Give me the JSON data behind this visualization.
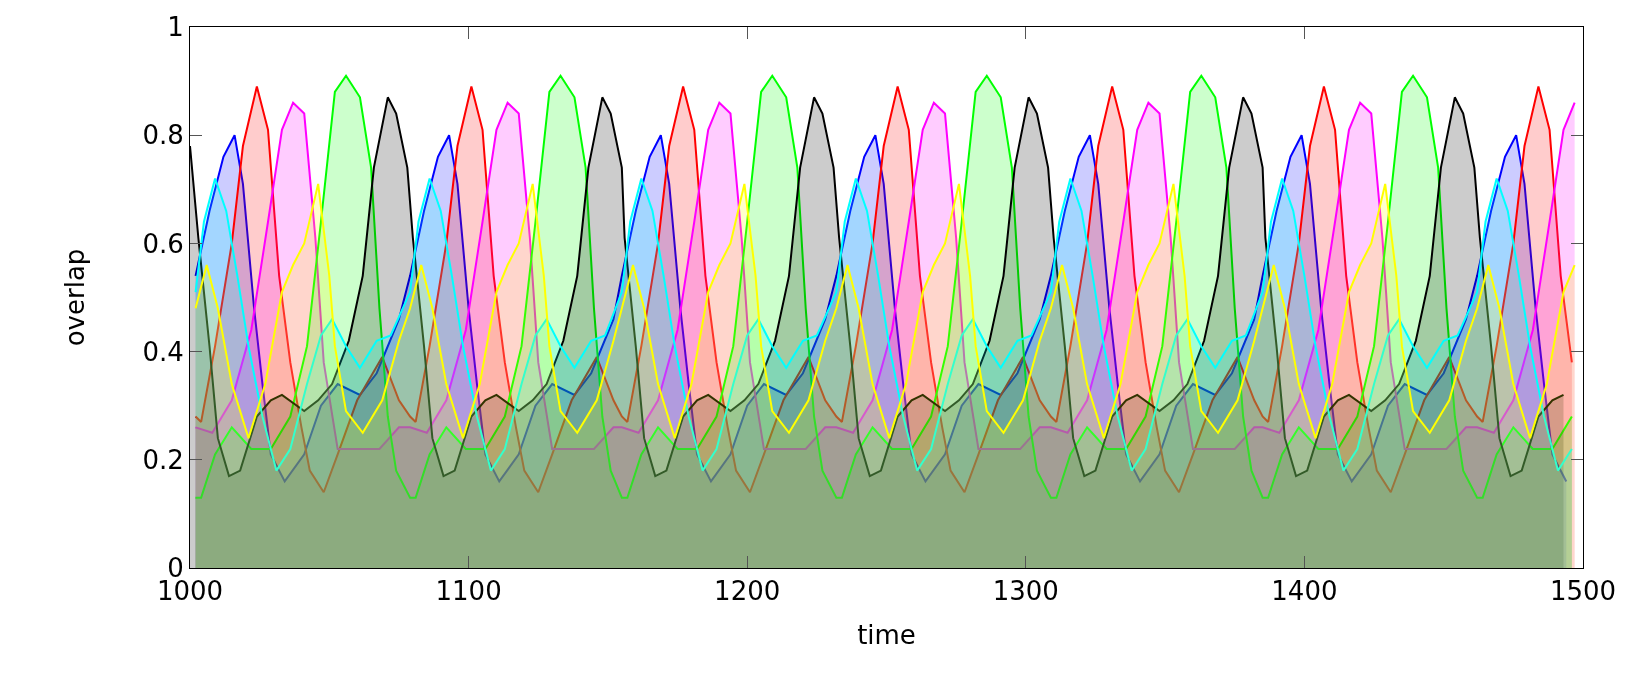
{
  "chart_data": {
    "type": "area",
    "xlabel": "time",
    "ylabel": "overlap",
    "xlim": [
      1000,
      1500
    ],
    "xticks": [
      1000,
      1100,
      1200,
      1300,
      1400,
      1500
    ],
    "ylim": [
      0,
      1
    ],
    "yticks": [
      0,
      0.2,
      0.4,
      0.6,
      0.8,
      1
    ],
    "marker": "none",
    "line_style": "solid",
    "series": [
      {
        "color": "#0000ff",
        "x": [
          1002,
          1007,
          1012,
          1016,
          1019,
          1023,
          1026,
          1029,
          1034,
          1041,
          1047,
          1053,
          1061,
          1067,
          1075,
          1079,
          1084,
          1089,
          1093,
          1096,
          1100,
          1103,
          1106,
          1111,
          1118,
          1124,
          1130,
          1138,
          1144,
          1152,
          1155,
          1160,
          1165,
          1169,
          1172,
          1176,
          1179,
          1182,
          1187,
          1194,
          1200,
          1206,
          1214,
          1220,
          1228,
          1232,
          1237,
          1242,
          1246,
          1249,
          1253,
          1256,
          1259,
          1264,
          1271,
          1277,
          1283,
          1291,
          1297,
          1305,
          1309,
          1314,
          1319,
          1323,
          1326,
          1330,
          1333,
          1336,
          1341,
          1348,
          1354,
          1360,
          1368,
          1374,
          1382,
          1385,
          1390,
          1395,
          1399,
          1402,
          1406,
          1409,
          1412,
          1417,
          1424,
          1430,
          1436,
          1444,
          1450,
          1458,
          1462,
          1467,
          1472,
          1476,
          1479,
          1483,
          1486,
          1489,
          1494
        ],
        "values": [
          0.54,
          0.66,
          0.76,
          0.8,
          0.71,
          0.48,
          0.34,
          0.21,
          0.16,
          0.21,
          0.3,
          0.34,
          0.32,
          0.36,
          0.46,
          0.54,
          0.66,
          0.76,
          0.8,
          0.71,
          0.48,
          0.34,
          0.21,
          0.16,
          0.21,
          0.3,
          0.34,
          0.32,
          0.36,
          0.46,
          0.54,
          0.66,
          0.76,
          0.8,
          0.71,
          0.48,
          0.34,
          0.21,
          0.16,
          0.21,
          0.3,
          0.34,
          0.32,
          0.36,
          0.46,
          0.54,
          0.66,
          0.76,
          0.8,
          0.71,
          0.48,
          0.34,
          0.21,
          0.16,
          0.21,
          0.3,
          0.34,
          0.32,
          0.36,
          0.46,
          0.54,
          0.66,
          0.76,
          0.8,
          0.71,
          0.48,
          0.34,
          0.21,
          0.16,
          0.21,
          0.3,
          0.34,
          0.32,
          0.36,
          0.46,
          0.54,
          0.66,
          0.76,
          0.8,
          0.71,
          0.48,
          0.34,
          0.21,
          0.16,
          0.21,
          0.3,
          0.34,
          0.32,
          0.36,
          0.46,
          0.54,
          0.66,
          0.76,
          0.8,
          0.71,
          0.48,
          0.34,
          0.21,
          0.16
        ]
      },
      {
        "color": "#ff0000",
        "x": [
          1002,
          1004,
          1009,
          1015,
          1019,
          1024,
          1028,
          1032,
          1036,
          1040,
          1043,
          1048,
          1053,
          1060,
          1069,
          1075,
          1079,
          1081,
          1086,
          1092,
          1096,
          1101,
          1105,
          1109,
          1113,
          1117,
          1120,
          1125,
          1130,
          1137,
          1146,
          1152,
          1155,
          1157,
          1162,
          1168,
          1172,
          1177,
          1181,
          1185,
          1189,
          1193,
          1196,
          1201,
          1206,
          1213,
          1222,
          1228,
          1232,
          1234,
          1239,
          1245,
          1249,
          1254,
          1258,
          1262,
          1266,
          1270,
          1273,
          1278,
          1283,
          1290,
          1299,
          1305,
          1309,
          1311,
          1316,
          1322,
          1326,
          1331,
          1335,
          1339,
          1343,
          1347,
          1350,
          1355,
          1360,
          1367,
          1376,
          1382,
          1385,
          1387,
          1392,
          1398,
          1402,
          1407,
          1411,
          1415,
          1419,
          1423,
          1426,
          1431,
          1436,
          1443,
          1452,
          1458,
          1462,
          1464,
          1469,
          1475,
          1479,
          1484,
          1488,
          1492,
          1496
        ],
        "values": [
          0.28,
          0.27,
          0.41,
          0.6,
          0.78,
          0.89,
          0.81,
          0.54,
          0.38,
          0.26,
          0.18,
          0.14,
          0.21,
          0.31,
          0.39,
          0.31,
          0.28,
          0.27,
          0.41,
          0.6,
          0.78,
          0.89,
          0.81,
          0.54,
          0.38,
          0.26,
          0.18,
          0.14,
          0.21,
          0.31,
          0.39,
          0.31,
          0.28,
          0.27,
          0.41,
          0.6,
          0.78,
          0.89,
          0.81,
          0.54,
          0.38,
          0.26,
          0.18,
          0.14,
          0.21,
          0.31,
          0.39,
          0.31,
          0.28,
          0.27,
          0.41,
          0.6,
          0.78,
          0.89,
          0.81,
          0.54,
          0.38,
          0.26,
          0.18,
          0.14,
          0.21,
          0.31,
          0.39,
          0.31,
          0.28,
          0.27,
          0.41,
          0.6,
          0.78,
          0.89,
          0.81,
          0.54,
          0.38,
          0.26,
          0.18,
          0.14,
          0.21,
          0.31,
          0.39,
          0.31,
          0.28,
          0.27,
          0.41,
          0.6,
          0.78,
          0.89,
          0.81,
          0.54,
          0.38,
          0.26,
          0.18,
          0.14,
          0.21,
          0.31,
          0.39,
          0.31,
          0.28,
          0.27,
          0.41,
          0.6,
          0.78,
          0.89,
          0.81,
          0.54,
          0.38
        ]
      },
      {
        "color": "#ff00ff",
        "x": [
          1002,
          1008,
          1015,
          1022,
          1028,
          1033,
          1037,
          1041,
          1045,
          1048,
          1053,
          1060,
          1068,
          1075,
          1079,
          1085,
          1092,
          1099,
          1105,
          1110,
          1114,
          1118,
          1122,
          1125,
          1130,
          1137,
          1145,
          1152,
          1155,
          1161,
          1168,
          1175,
          1181,
          1186,
          1190,
          1194,
          1198,
          1201,
          1206,
          1213,
          1221,
          1228,
          1232,
          1238,
          1245,
          1252,
          1258,
          1263,
          1267,
          1271,
          1275,
          1278,
          1283,
          1290,
          1298,
          1305,
          1309,
          1315,
          1322,
          1329,
          1335,
          1340,
          1344,
          1348,
          1352,
          1355,
          1360,
          1367,
          1375,
          1382,
          1385,
          1391,
          1398,
          1405,
          1411,
          1416,
          1420,
          1424,
          1428,
          1431,
          1436,
          1443,
          1451,
          1458,
          1462,
          1468,
          1475,
          1482,
          1488,
          1493,
          1497
        ],
        "values": [
          0.26,
          0.25,
          0.31,
          0.44,
          0.64,
          0.81,
          0.86,
          0.84,
          0.61,
          0.38,
          0.22,
          0.22,
          0.22,
          0.26,
          0.26,
          0.25,
          0.31,
          0.44,
          0.64,
          0.81,
          0.86,
          0.84,
          0.61,
          0.38,
          0.22,
          0.22,
          0.22,
          0.26,
          0.26,
          0.25,
          0.31,
          0.44,
          0.64,
          0.81,
          0.86,
          0.84,
          0.61,
          0.38,
          0.22,
          0.22,
          0.22,
          0.26,
          0.26,
          0.25,
          0.31,
          0.44,
          0.64,
          0.81,
          0.86,
          0.84,
          0.61,
          0.38,
          0.22,
          0.22,
          0.22,
          0.26,
          0.26,
          0.25,
          0.31,
          0.44,
          0.64,
          0.81,
          0.86,
          0.84,
          0.61,
          0.38,
          0.22,
          0.22,
          0.22,
          0.26,
          0.26,
          0.25,
          0.31,
          0.44,
          0.64,
          0.81,
          0.86,
          0.84,
          0.61,
          0.38,
          0.22,
          0.22,
          0.22,
          0.26,
          0.26,
          0.25,
          0.31,
          0.44,
          0.64,
          0.81,
          0.86
        ]
      },
      {
        "color": "#00ff00",
        "x": [
          1002,
          1004,
          1009,
          1015,
          1022,
          1029,
          1036,
          1042,
          1047,
          1052,
          1056,
          1061,
          1065,
          1068,
          1071,
          1074,
          1079,
          1081,
          1086,
          1092,
          1099,
          1106,
          1113,
          1119,
          1124,
          1129,
          1133,
          1138,
          1142,
          1145,
          1148,
          1151,
          1155,
          1157,
          1162,
          1168,
          1175,
          1182,
          1189,
          1195,
          1200,
          1205,
          1209,
          1214,
          1218,
          1221,
          1224,
          1227,
          1232,
          1234,
          1239,
          1245,
          1252,
          1259,
          1266,
          1272,
          1277,
          1282,
          1286,
          1291,
          1295,
          1298,
          1301,
          1304,
          1309,
          1311,
          1316,
          1322,
          1329,
          1336,
          1343,
          1349,
          1354,
          1359,
          1363,
          1368,
          1372,
          1375,
          1378,
          1381,
          1385,
          1387,
          1392,
          1398,
          1405,
          1412,
          1419,
          1425,
          1430,
          1435,
          1439,
          1444,
          1448,
          1451,
          1454,
          1457,
          1462,
          1464,
          1469,
          1475,
          1482,
          1489,
          1496
        ],
        "values": [
          0.13,
          0.13,
          0.21,
          0.26,
          0.22,
          0.22,
          0.28,
          0.41,
          0.64,
          0.88,
          0.91,
          0.87,
          0.74,
          0.48,
          0.28,
          0.18,
          0.13,
          0.13,
          0.21,
          0.26,
          0.22,
          0.22,
          0.28,
          0.41,
          0.64,
          0.88,
          0.91,
          0.87,
          0.74,
          0.48,
          0.28,
          0.18,
          0.13,
          0.13,
          0.21,
          0.26,
          0.22,
          0.22,
          0.28,
          0.41,
          0.64,
          0.88,
          0.91,
          0.87,
          0.74,
          0.48,
          0.28,
          0.18,
          0.13,
          0.13,
          0.21,
          0.26,
          0.22,
          0.22,
          0.28,
          0.41,
          0.64,
          0.88,
          0.91,
          0.87,
          0.74,
          0.48,
          0.28,
          0.18,
          0.13,
          0.13,
          0.21,
          0.26,
          0.22,
          0.22,
          0.28,
          0.41,
          0.64,
          0.88,
          0.91,
          0.87,
          0.74,
          0.48,
          0.28,
          0.18,
          0.13,
          0.13,
          0.21,
          0.26,
          0.22,
          0.22,
          0.28,
          0.41,
          0.64,
          0.88,
          0.91,
          0.87,
          0.74,
          0.48,
          0.28,
          0.18,
          0.13,
          0.13,
          0.21,
          0.26,
          0.22,
          0.22,
          0.28
        ]
      },
      {
        "color": "#000000",
        "x": [
          1000,
          1003,
          1007,
          1010,
          1014,
          1018,
          1024,
          1029,
          1033,
          1041,
          1046,
          1051,
          1057,
          1062,
          1066,
          1071,
          1074,
          1078,
          1080,
          1084,
          1087,
          1091,
          1095,
          1101,
          1106,
          1110,
          1118,
          1123,
          1128,
          1134,
          1139,
          1143,
          1148,
          1151,
          1155,
          1156,
          1160,
          1163,
          1167,
          1171,
          1177,
          1182,
          1186,
          1194,
          1199,
          1204,
          1210,
          1215,
          1219,
          1224,
          1227,
          1231,
          1233,
          1237,
          1240,
          1244,
          1248,
          1254,
          1259,
          1263,
          1271,
          1276,
          1281,
          1287,
          1292,
          1296,
          1301,
          1304,
          1308,
          1310,
          1314,
          1317,
          1321,
          1325,
          1331,
          1336,
          1340,
          1348,
          1353,
          1358,
          1364,
          1369,
          1373,
          1378,
          1381,
          1385,
          1386,
          1390,
          1393,
          1397,
          1401,
          1407,
          1412,
          1416,
          1424,
          1429,
          1434,
          1440,
          1445,
          1449,
          1454,
          1457,
          1461,
          1463,
          1467,
          1470,
          1474,
          1478,
          1484,
          1489,
          1493
        ],
        "values": [
          0.78,
          0.61,
          0.41,
          0.24,
          0.17,
          0.18,
          0.28,
          0.31,
          0.32,
          0.29,
          0.31,
          0.34,
          0.42,
          0.54,
          0.74,
          0.87,
          0.84,
          0.74,
          0.61,
          0.41,
          0.24,
          0.17,
          0.18,
          0.28,
          0.31,
          0.32,
          0.29,
          0.31,
          0.34,
          0.42,
          0.54,
          0.74,
          0.87,
          0.84,
          0.74,
          0.61,
          0.41,
          0.24,
          0.17,
          0.18,
          0.28,
          0.31,
          0.32,
          0.29,
          0.31,
          0.34,
          0.42,
          0.54,
          0.74,
          0.87,
          0.84,
          0.74,
          0.61,
          0.41,
          0.24,
          0.17,
          0.18,
          0.28,
          0.31,
          0.32,
          0.29,
          0.31,
          0.34,
          0.42,
          0.54,
          0.74,
          0.87,
          0.84,
          0.74,
          0.61,
          0.41,
          0.24,
          0.17,
          0.18,
          0.28,
          0.31,
          0.32,
          0.29,
          0.31,
          0.34,
          0.42,
          0.54,
          0.74,
          0.87,
          0.84,
          0.74,
          0.61,
          0.41,
          0.24,
          0.17,
          0.18,
          0.28,
          0.31,
          0.32,
          0.29,
          0.31,
          0.34,
          0.42,
          0.54,
          0.74,
          0.87,
          0.84,
          0.74,
          0.61,
          0.41,
          0.24,
          0.17,
          0.18,
          0.28,
          0.31,
          0.32
        ]
      },
      {
        "color": "#00ffff",
        "x": [
          1002,
          1005,
          1009,
          1013,
          1017,
          1021,
          1026,
          1031,
          1036,
          1042,
          1047,
          1051,
          1056,
          1061,
          1067,
          1072,
          1079,
          1082,
          1086,
          1090,
          1094,
          1098,
          1103,
          1108,
          1113,
          1119,
          1124,
          1128,
          1133,
          1138,
          1144,
          1149,
          1155,
          1158,
          1162,
          1166,
          1170,
          1174,
          1179,
          1184,
          1189,
          1195,
          1200,
          1204,
          1209,
          1214,
          1220,
          1225,
          1232,
          1235,
          1239,
          1243,
          1247,
          1251,
          1256,
          1261,
          1266,
          1272,
          1277,
          1281,
          1286,
          1291,
          1297,
          1302,
          1309,
          1312,
          1316,
          1320,
          1324,
          1328,
          1333,
          1338,
          1343,
          1349,
          1354,
          1358,
          1363,
          1368,
          1374,
          1379,
          1385,
          1388,
          1392,
          1396,
          1400,
          1404,
          1409,
          1414,
          1419,
          1425,
          1430,
          1434,
          1439,
          1444,
          1450,
          1455,
          1462,
          1465,
          1469,
          1473,
          1477,
          1481,
          1486,
          1491,
          1496
        ],
        "values": [
          0.51,
          0.64,
          0.72,
          0.66,
          0.54,
          0.41,
          0.28,
          0.18,
          0.22,
          0.34,
          0.43,
          0.46,
          0.41,
          0.37,
          0.42,
          0.43,
          0.51,
          0.64,
          0.72,
          0.66,
          0.54,
          0.41,
          0.28,
          0.18,
          0.22,
          0.34,
          0.43,
          0.46,
          0.41,
          0.37,
          0.42,
          0.43,
          0.51,
          0.64,
          0.72,
          0.66,
          0.54,
          0.41,
          0.28,
          0.18,
          0.22,
          0.34,
          0.43,
          0.46,
          0.41,
          0.37,
          0.42,
          0.43,
          0.51,
          0.64,
          0.72,
          0.66,
          0.54,
          0.41,
          0.28,
          0.18,
          0.22,
          0.34,
          0.43,
          0.46,
          0.41,
          0.37,
          0.42,
          0.43,
          0.51,
          0.64,
          0.72,
          0.66,
          0.54,
          0.41,
          0.28,
          0.18,
          0.22,
          0.34,
          0.43,
          0.46,
          0.41,
          0.37,
          0.42,
          0.43,
          0.51,
          0.64,
          0.72,
          0.66,
          0.54,
          0.41,
          0.28,
          0.18,
          0.22,
          0.34,
          0.43,
          0.46,
          0.41,
          0.37,
          0.42,
          0.43,
          0.51,
          0.64,
          0.72,
          0.66,
          0.54,
          0.41,
          0.28,
          0.18,
          0.22
        ]
      },
      {
        "color": "#ffff00",
        "x": [
          1002,
          1006,
          1010,
          1015,
          1021,
          1027,
          1033,
          1037,
          1041,
          1046,
          1050,
          1052,
          1056,
          1062,
          1069,
          1075,
          1079,
          1083,
          1087,
          1092,
          1098,
          1104,
          1110,
          1114,
          1118,
          1123,
          1127,
          1129,
          1133,
          1139,
          1146,
          1152,
          1155,
          1159,
          1163,
          1168,
          1174,
          1180,
          1186,
          1190,
          1194,
          1199,
          1203,
          1205,
          1209,
          1215,
          1222,
          1228,
          1232,
          1236,
          1240,
          1245,
          1251,
          1257,
          1263,
          1267,
          1271,
          1276,
          1280,
          1282,
          1286,
          1292,
          1299,
          1305,
          1309,
          1313,
          1317,
          1322,
          1328,
          1334,
          1340,
          1344,
          1348,
          1353,
          1357,
          1359,
          1363,
          1369,
          1376,
          1382,
          1385,
          1389,
          1393,
          1398,
          1404,
          1410,
          1416,
          1420,
          1424,
          1429,
          1433,
          1435,
          1439,
          1445,
          1452,
          1458,
          1462,
          1466,
          1470,
          1475,
          1481,
          1487,
          1493,
          1497
        ],
        "values": [
          0.48,
          0.56,
          0.48,
          0.34,
          0.24,
          0.34,
          0.51,
          0.56,
          0.6,
          0.71,
          0.54,
          0.41,
          0.29,
          0.25,
          0.31,
          0.42,
          0.48,
          0.56,
          0.48,
          0.34,
          0.24,
          0.34,
          0.51,
          0.56,
          0.6,
          0.71,
          0.54,
          0.41,
          0.29,
          0.25,
          0.31,
          0.42,
          0.48,
          0.56,
          0.48,
          0.34,
          0.24,
          0.34,
          0.51,
          0.56,
          0.6,
          0.71,
          0.54,
          0.41,
          0.29,
          0.25,
          0.31,
          0.42,
          0.48,
          0.56,
          0.48,
          0.34,
          0.24,
          0.34,
          0.51,
          0.56,
          0.6,
          0.71,
          0.54,
          0.41,
          0.29,
          0.25,
          0.31,
          0.42,
          0.48,
          0.56,
          0.48,
          0.34,
          0.24,
          0.34,
          0.51,
          0.56,
          0.6,
          0.71,
          0.54,
          0.41,
          0.29,
          0.25,
          0.31,
          0.42,
          0.48,
          0.56,
          0.48,
          0.34,
          0.24,
          0.34,
          0.51,
          0.56,
          0.6,
          0.71,
          0.54,
          0.41,
          0.29,
          0.25,
          0.31,
          0.42,
          0.48,
          0.56,
          0.48,
          0.34,
          0.24,
          0.34,
          0.51,
          0.56
        ]
      }
    ]
  }
}
